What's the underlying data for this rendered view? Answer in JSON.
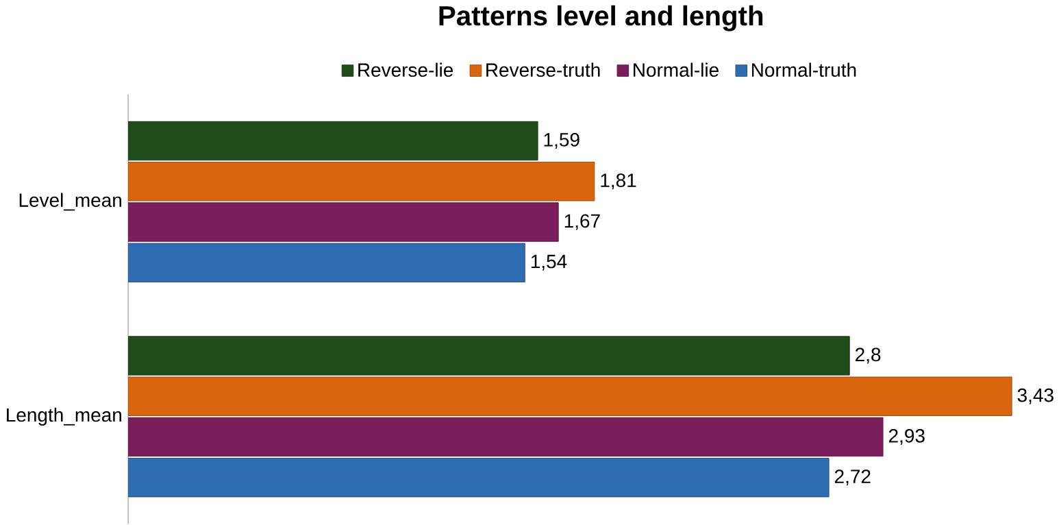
{
  "chart_data": {
    "type": "bar",
    "orientation": "horizontal",
    "title": "Patterns level and length",
    "categories": [
      "Level_mean",
      "Length_mean"
    ],
    "series": [
      {
        "name": "Reverse-lie",
        "color": "#1f4d1a",
        "values": [
          1.59,
          2.8
        ],
        "value_labels": [
          "1,59",
          "2,8"
        ]
      },
      {
        "name": "Reverse-truth",
        "color": "#d9650f",
        "values": [
          1.81,
          3.43
        ],
        "value_labels": [
          "1,81",
          "3,43"
        ]
      },
      {
        "name": "Normal-lie",
        "color": "#7a1f5c",
        "values": [
          1.67,
          2.93
        ],
        "value_labels": [
          "1,67",
          "2,93"
        ]
      },
      {
        "name": "Normal-truth",
        "color": "#2f6db3",
        "values": [
          1.54,
          2.72
        ],
        "value_labels": [
          "1,54",
          "2,72"
        ]
      }
    ],
    "legend": "top"
  }
}
